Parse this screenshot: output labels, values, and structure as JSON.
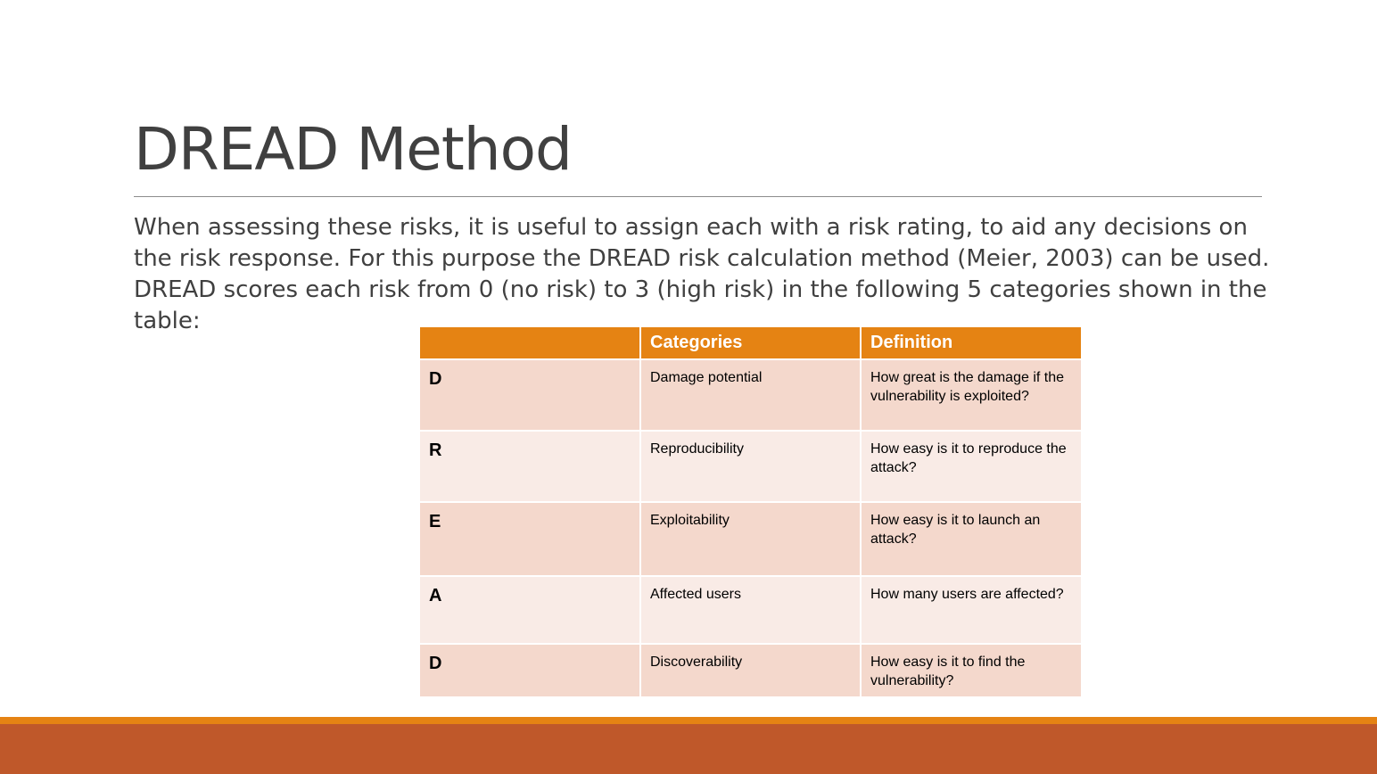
{
  "slide": {
    "title": "DREAD Method",
    "body": "When assessing these risks, it is useful to assign each with a risk rating, to aid any decisions on the risk response. For this purpose the DREAD risk calculation method (Meier, 2003) can be used. DREAD scores each risk from 0 (no risk) to 3 (high risk) in the following 5 categories shown in the table:"
  },
  "table": {
    "headers": [
      "",
      "Categories",
      "Definition"
    ],
    "rows": [
      {
        "letter": "D",
        "category": "Damage potential",
        "definition": "How great is the damage if the vulnerability is exploited?"
      },
      {
        "letter": "R",
        "category": "Reproducibility",
        "definition": "How easy is it to reproduce the attack?"
      },
      {
        "letter": "E",
        "category": "Exploitability",
        "definition": "How easy is it to launch an attack?"
      },
      {
        "letter": "A",
        "category": "Affected users",
        "definition": "How many users are affected?"
      },
      {
        "letter": "D",
        "category": "Discoverability",
        "definition": "How easy is it to find the vulnerability?"
      }
    ]
  },
  "colors": {
    "header_fill": "#e58313",
    "row_dark": "#f4d8cc",
    "row_light": "#f9ebe6",
    "footer_accent": "#e58313",
    "footer_bar": "#bf582a",
    "title_text": "#404040"
  }
}
